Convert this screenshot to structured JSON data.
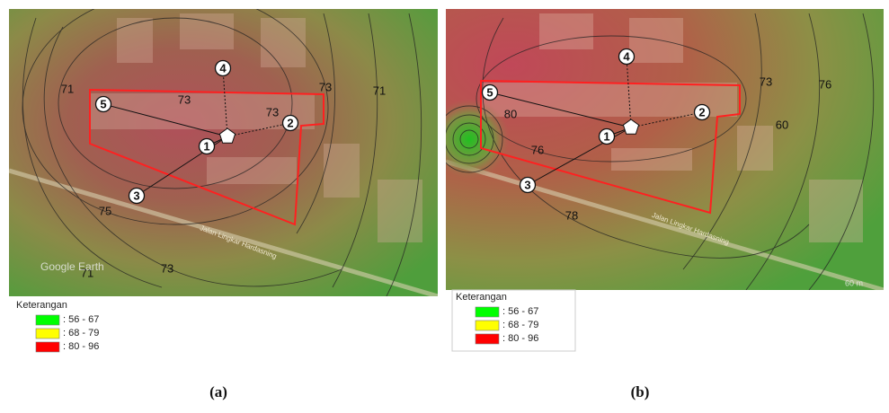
{
  "panels": [
    {
      "caption": "(a)",
      "legend": {
        "title": "Keterangan",
        "items": [
          {
            "label": ": 56 - 67",
            "color": "#00ff00"
          },
          {
            "label": ": 68 - 79",
            "color": "#ffff00"
          },
          {
            "label": ": 80 - 96",
            "color": "#ff0000"
          }
        ]
      },
      "points": [
        "1",
        "2",
        "3",
        "4",
        "5"
      ],
      "contour_labels": [
        "71",
        "73",
        "73",
        "73",
        "71",
        "75",
        "73",
        "71"
      ],
      "road_label": "Jalan Lingkar Hardasning",
      "watermark": "Google Earth"
    },
    {
      "caption": "(b)",
      "legend": {
        "title": "Keterangan",
        "items": [
          {
            "label": ": 56 - 67",
            "color": "#00ff00"
          },
          {
            "label": ": 68 - 79",
            "color": "#ffff00"
          },
          {
            "label": ": 80 - 96",
            "color": "#ff0000"
          }
        ]
      },
      "points": [
        "1",
        "2",
        "3",
        "4",
        "5"
      ],
      "contour_labels": [
        "80",
        "76",
        "78",
        "73",
        "76",
        "60"
      ],
      "road_label": "Jalan Lingkar Hardasning",
      "watermark": "60 m"
    }
  ]
}
